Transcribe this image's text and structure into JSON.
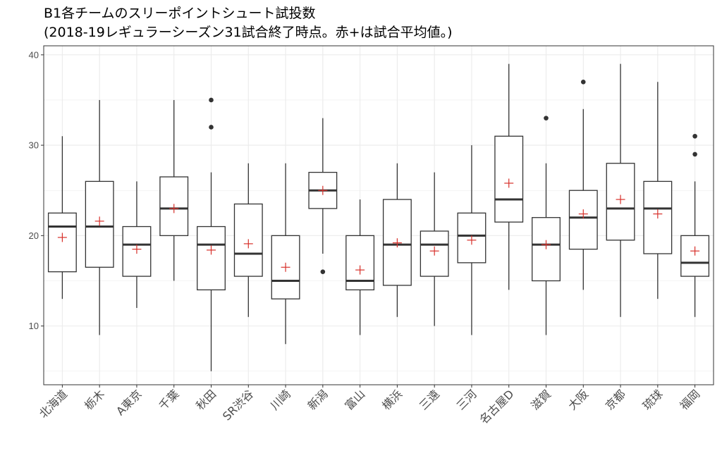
{
  "title_lines": [
    "B1各チームのスリーポイントシュート試投数",
    "(2018-19レギュラーシーズン31試合終了時点。赤+は試合平均値。)"
  ],
  "colors": {
    "box_line": "#333333",
    "median": "#333333",
    "mean_marker": "#d7302a",
    "grid": "#ebebeb",
    "panel_border": "#333333",
    "background": "#ffffff"
  },
  "chart_data": {
    "type": "box",
    "ylim": [
      3.5,
      41
    ],
    "yticks": [
      10,
      20,
      30,
      40
    ],
    "grid": true,
    "mean_marker_label": "赤+は試合平均値",
    "categories": [
      "北海道",
      "栃木",
      "A東京",
      "千葉",
      "秋田",
      "SR渋谷",
      "川崎",
      "新潟",
      "富山",
      "横浜",
      "三遠",
      "三河",
      "名古屋D",
      "滋賀",
      "大阪",
      "京都",
      "琉球",
      "福岡"
    ],
    "boxes": [
      {
        "team": "北海道",
        "min": 13,
        "q1": 16,
        "median": 21,
        "q3": 22.5,
        "max": 31,
        "mean": 19.8,
        "outliers": []
      },
      {
        "team": "栃木",
        "min": 9,
        "q1": 16.5,
        "median": 21,
        "q3": 26,
        "max": 35,
        "mean": 21.6,
        "outliers": []
      },
      {
        "team": "A東京",
        "min": 12,
        "q1": 15.5,
        "median": 19,
        "q3": 21,
        "max": 26,
        "mean": 18.5,
        "outliers": []
      },
      {
        "team": "千葉",
        "min": 15,
        "q1": 20,
        "median": 23,
        "q3": 26.5,
        "max": 35,
        "mean": 23,
        "outliers": []
      },
      {
        "team": "秋田",
        "min": 5,
        "q1": 14,
        "median": 19,
        "q3": 21,
        "max": 27,
        "mean": 18.4,
        "outliers": [
          32,
          35
        ]
      },
      {
        "team": "SR渋谷",
        "min": 11,
        "q1": 15.5,
        "median": 18,
        "q3": 23.5,
        "max": 28,
        "mean": 19.1,
        "outliers": []
      },
      {
        "team": "川崎",
        "min": 8,
        "q1": 13,
        "median": 15,
        "q3": 20,
        "max": 28,
        "mean": 16.5,
        "outliers": []
      },
      {
        "team": "新潟",
        "min": 18,
        "q1": 23,
        "median": 25,
        "q3": 27,
        "max": 33,
        "mean": 25,
        "outliers": [
          16
        ]
      },
      {
        "team": "富山",
        "min": 9,
        "q1": 14,
        "median": 15,
        "q3": 20,
        "max": 24,
        "mean": 16.2,
        "outliers": []
      },
      {
        "team": "横浜",
        "min": 11,
        "q1": 14.5,
        "median": 19,
        "q3": 24,
        "max": 28,
        "mean": 19.2,
        "outliers": []
      },
      {
        "team": "三遠",
        "min": 10,
        "q1": 15.5,
        "median": 19,
        "q3": 20.5,
        "max": 27,
        "mean": 18.3,
        "outliers": []
      },
      {
        "team": "三河",
        "min": 9,
        "q1": 17,
        "median": 20,
        "q3": 22.5,
        "max": 30,
        "mean": 19.5,
        "outliers": []
      },
      {
        "team": "名古屋D",
        "min": 14,
        "q1": 21.5,
        "median": 24,
        "q3": 31,
        "max": 39,
        "mean": 25.8,
        "outliers": []
      },
      {
        "team": "滋賀",
        "min": 9,
        "q1": 15,
        "median": 19,
        "q3": 22,
        "max": 28,
        "mean": 19,
        "outliers": [
          33
        ]
      },
      {
        "team": "大阪",
        "min": 14,
        "q1": 18.5,
        "median": 22,
        "q3": 25,
        "max": 34,
        "mean": 22.4,
        "outliers": [
          37
        ]
      },
      {
        "team": "京都",
        "min": 11,
        "q1": 19.5,
        "median": 23,
        "q3": 28,
        "max": 39,
        "mean": 24,
        "outliers": []
      },
      {
        "team": "琉球",
        "min": 13,
        "q1": 18,
        "median": 23,
        "q3": 26,
        "max": 37,
        "mean": 22.4,
        "outliers": []
      },
      {
        "team": "福岡",
        "min": 11,
        "q1": 15.5,
        "median": 17,
        "q3": 20,
        "max": 26,
        "mean": 18.3,
        "outliers": [
          29,
          31
        ]
      }
    ]
  }
}
